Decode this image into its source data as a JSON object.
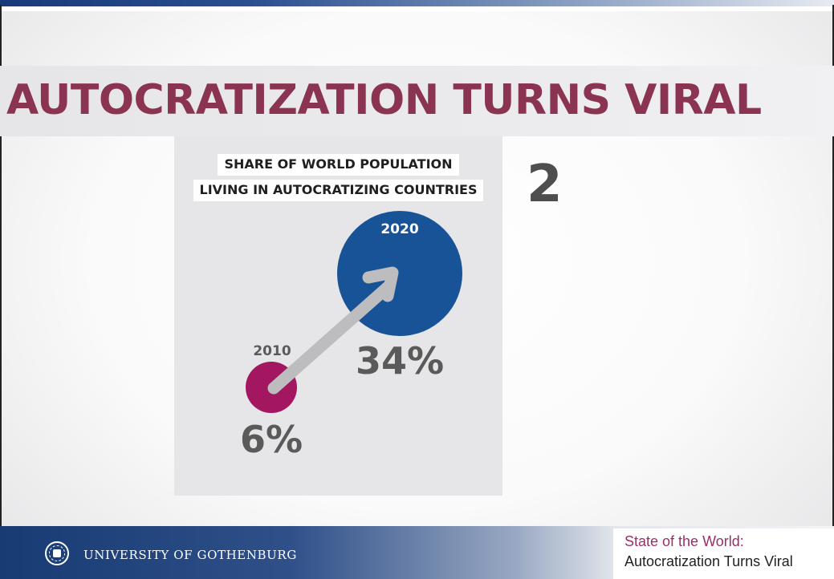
{
  "slide": {
    "title": "AUTOCRATIZATION TURNS VIRAL",
    "slide_number": "2"
  },
  "infographic": {
    "title_line1": "SHARE OF WORLD POPULATION",
    "title_line2": "LIVING IN AUTOCRATIZING COUNTRIES",
    "points": [
      {
        "year": "2010",
        "value_label": "6%",
        "value": 6,
        "color": "#a31760"
      },
      {
        "year": "2020",
        "value_label": "34%",
        "value": 34,
        "color": "#175396"
      }
    ],
    "arrow_color": "#bdbdbf",
    "value_text_color": "#5a5a5a"
  },
  "footer": {
    "university": "UNIVERSITY OF GOTHENBURG",
    "card_line1": "State of the World:",
    "card_line2": "Autocratization Turns Viral"
  },
  "colors": {
    "title": "#8a3452",
    "footer_blue": "#183b74",
    "card_accent": "#9c2e68"
  }
}
